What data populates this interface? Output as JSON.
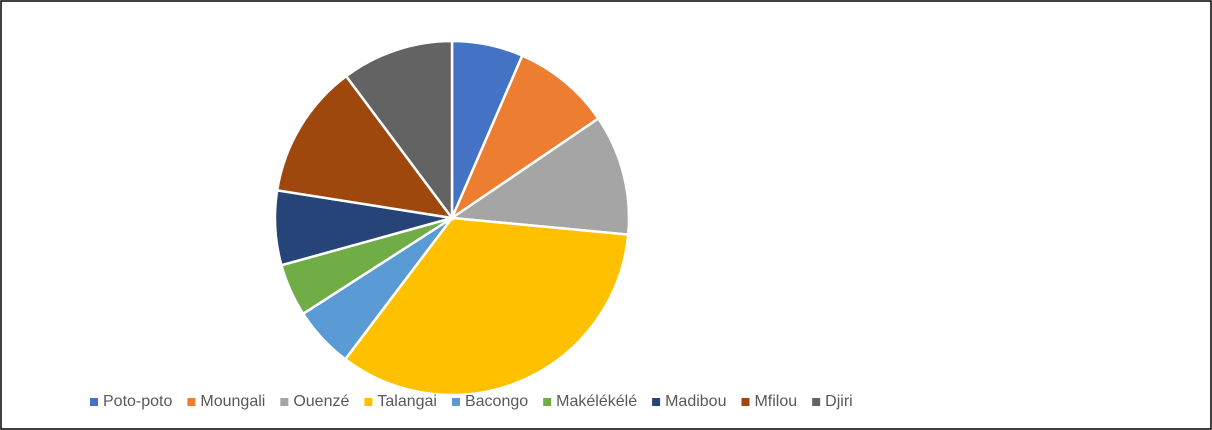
{
  "chart_data": {
    "type": "pie",
    "categories": [
      "Poto-poto",
      "Moungali",
      "Ouenzé",
      "Talangai",
      "Bacongo",
      "Makélékélé",
      "Madibou",
      "Mfilou",
      "Djiri"
    ],
    "values": [
      6.5,
      9,
      11,
      33.8,
      5.6,
      4.8,
      6.8,
      12.3,
      10.2
    ],
    "colors": [
      "#4472c4",
      "#ed7d31",
      "#a5a5a5",
      "#ffc000",
      "#5b9bd5",
      "#70ad47",
      "#264478",
      "#9e480e",
      "#636363"
    ],
    "legend": "bottom"
  }
}
